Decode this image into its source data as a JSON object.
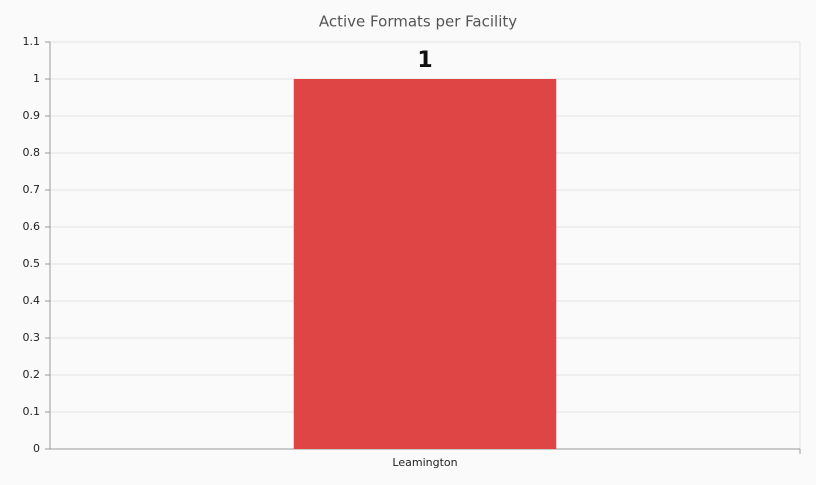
{
  "chart_data": {
    "type": "bar",
    "title": "Active Formats per Facility",
    "categories": [
      "Leamington"
    ],
    "values": [
      1
    ],
    "color": "#e04546",
    "ylim": [
      0,
      1.1
    ],
    "yticks": [
      0,
      0.1,
      0.2,
      0.3,
      0.4,
      0.5,
      0.6,
      0.7,
      0.8,
      0.9,
      1,
      1.1
    ],
    "grid": true,
    "data_labels": true
  }
}
